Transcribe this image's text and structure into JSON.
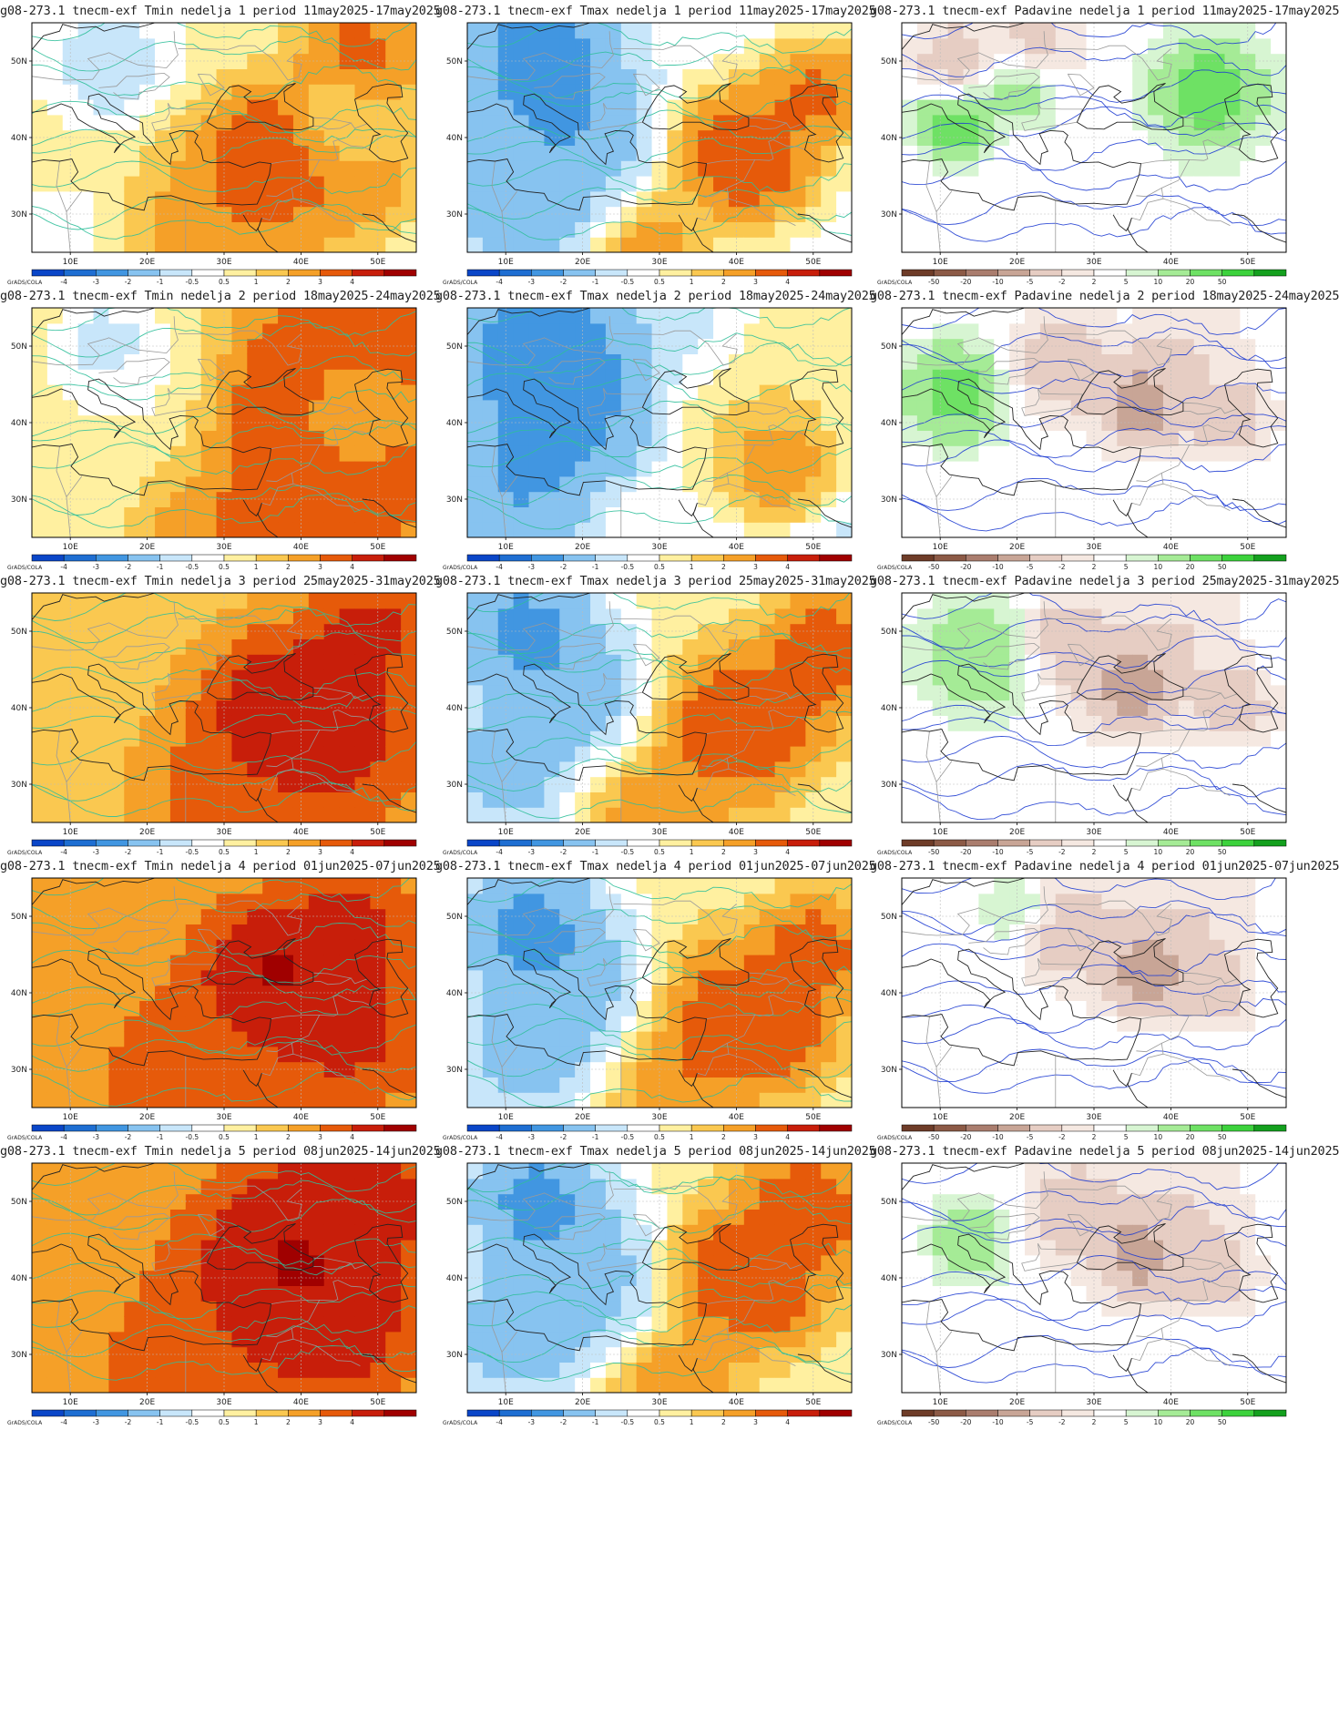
{
  "panels": [
    {
      "title": "g08-273.1 tnecm-exf Tmin nedelja 1 period 11may2025-17may2025",
      "kind": "tmin",
      "week": 1
    },
    {
      "title": "g08-273.1 tnecm-exf Tmax nedelja 1 period 11may2025-17may2025",
      "kind": "tmax",
      "week": 1
    },
    {
      "title": "g08-273.1 tnecm-exf Padavine nedelja 1 period 11may2025-17may2025",
      "kind": "prec",
      "week": 1
    },
    {
      "title": "g08-273.1 tnecm-exf Tmin nedelja 2 period 18may2025-24may2025",
      "kind": "tmin",
      "week": 2
    },
    {
      "title": "g08-273.1 tnecm-exf Tmax nedelja 2 period 18may2025-24may2025",
      "kind": "tmax",
      "week": 2
    },
    {
      "title": "g08-273.1 tnecm-exf Padavine nedelja 2 period 18may2025-24may2025",
      "kind": "prec",
      "week": 2
    },
    {
      "title": "g08-273.1 tnecm-exf Tmin nedelja 3 period 25may2025-31may2025",
      "kind": "tmin",
      "week": 3
    },
    {
      "title": "g08-273.1 tnecm-exf Tmax nedelja 3 period 25may2025-31may2025",
      "kind": "tmax",
      "week": 3
    },
    {
      "title": "g08-273.1 tnecm-exf Padavine nedelja 3 period 25may2025-31may2025",
      "kind": "prec",
      "week": 3
    },
    {
      "title": "g08-273.1 tnecm-exf Tmin nedelja 4 period 01jun2025-07jun2025",
      "kind": "tmin",
      "week": 4
    },
    {
      "title": "g08-273.1 tnecm-exf Tmax nedelja 4 period 01jun2025-07jun2025",
      "kind": "tmax",
      "week": 4
    },
    {
      "title": "g08-273.1 tnecm-exf Padavine nedelja 4 period 01jun2025-07jun2025",
      "kind": "prec",
      "week": 4
    },
    {
      "title": "g08-273.1 tnecm-exf Tmin nedelja 5 period 08jun2025-14jun2025",
      "kind": "tmin",
      "week": 5
    },
    {
      "title": "g08-273.1 tnecm-exf Tmax nedelja 5 period 08jun2025-14jun2025",
      "kind": "tmax",
      "week": 5
    },
    {
      "title": "g08-273.1 tnecm-exf Padavine nedelja 5 period 08jun2025-14jun2025",
      "kind": "prec",
      "week": 5
    }
  ],
  "axes": {
    "lat_labels": [
      "30N",
      "40N",
      "50N"
    ],
    "lat_values": [
      30,
      40,
      50
    ],
    "lon_labels": [
      "10E",
      "20E",
      "30E",
      "40E",
      "50E"
    ],
    "lon_values": [
      10,
      20,
      30,
      40,
      50
    ],
    "lon_range": [
      5,
      55
    ],
    "lat_range": [
      25,
      55
    ]
  },
  "credit": "GrADS/COLA",
  "colorbars": {
    "temperature": {
      "labels": [
        "-4",
        "-3",
        "-2",
        "-1",
        "-0.5",
        "0.5",
        "1",
        "2",
        "3",
        "4"
      ],
      "colors": [
        "#0a46c8",
        "#1e6ed2",
        "#4196e1",
        "#87c3f0",
        "#c8e6fa",
        "#ffffff",
        "#fff0a0",
        "#fac850",
        "#f5a028",
        "#e65a0a",
        "#c81e0a",
        "#a00000"
      ]
    },
    "precipitation": {
      "labels": [
        "-50",
        "-20",
        "-10",
        "-5",
        "-2",
        "2",
        "5",
        "10",
        "20",
        "50"
      ],
      "colors": [
        "#6e3c28",
        "#8c5a46",
        "#aa7d6e",
        "#c8a596",
        "#e6cdc3",
        "#f5e8e1",
        "#ffffff",
        "#d7f5d2",
        "#a5eb96",
        "#6ee164",
        "#3cd23c",
        "#14a01e"
      ]
    }
  },
  "colors": {
    "temp_contour": "#2fbf9a",
    "prec_contour": "#1e3cd2",
    "coast": "#222222",
    "border": "#9a9a9a"
  }
}
